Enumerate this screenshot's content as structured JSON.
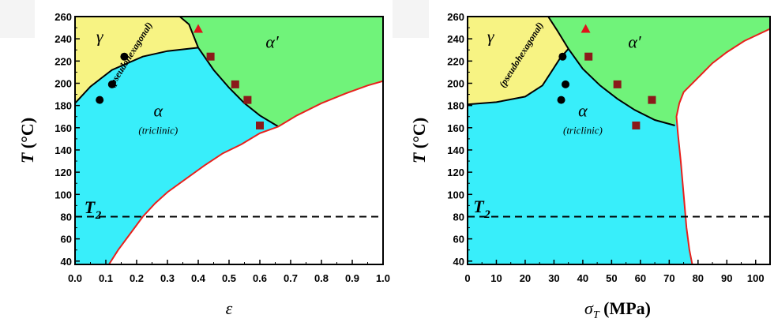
{
  "chart_data": [
    {
      "type": "area",
      "xlabel": "ε",
      "ylabel_symbol": "T",
      "ylabel_unit": " (°C)",
      "xlim": [
        0.0,
        1.0
      ],
      "ylim": [
        37,
        260
      ],
      "xticks": [
        0.0,
        0.1,
        0.2,
        0.3,
        0.4,
        0.5,
        0.6,
        0.7,
        0.8,
        0.9,
        1.0
      ],
      "xtick_labels": [
        "0.0",
        "0.1",
        "0.2",
        "0.3",
        "0.4",
        "0.5",
        "0.6",
        "0.7",
        "0.8",
        "0.9",
        "1.0"
      ],
      "yticks": [
        40,
        60,
        80,
        100,
        120,
        140,
        160,
        180,
        200,
        220,
        240,
        260
      ],
      "ytick_labels": [
        "40",
        "60",
        "80",
        "100",
        "120",
        "140",
        "160",
        "180",
        "200",
        "220",
        "240",
        "260"
      ],
      "colors": {
        "gamma": "#f7f383",
        "alpha": "#38eefa",
        "alpha_prime": "#70f37a",
        "boundary": "#000000",
        "limit": "#e8201c",
        "circle": "#000000",
        "square": "#8b1a1a",
        "triangle": "#e0121a"
      },
      "phases": [
        {
          "symbol": "γ",
          "name": "(pseudohexagonal)",
          "pos": [
            0.08,
            237
          ]
        },
        {
          "symbol": "α",
          "name": "(triclinic)",
          "pos": [
            0.27,
            170
          ]
        },
        {
          "symbol": "α′",
          "name": "",
          "pos": [
            0.64,
            232
          ]
        }
      ],
      "t2": {
        "symbol": "T",
        "sub": "2",
        "value": 80,
        "label_pos": [
          0.03,
          83
        ]
      },
      "gamma_alpha_boundary": [
        [
          0.0,
          182
        ],
        [
          0.05,
          197
        ],
        [
          0.12,
          212
        ],
        [
          0.22,
          224
        ],
        [
          0.3,
          229
        ],
        [
          0.4,
          232
        ]
      ],
      "alpha_alphaprime_boundary": [
        [
          0.34,
          260
        ],
        [
          0.37,
          253
        ],
        [
          0.4,
          232
        ],
        [
          0.45,
          212
        ],
        [
          0.5,
          196
        ],
        [
          0.55,
          182
        ],
        [
          0.6,
          171
        ],
        [
          0.66,
          161
        ]
      ],
      "limit_curve": [
        [
          0.11,
          37
        ],
        [
          0.14,
          50
        ],
        [
          0.18,
          65
        ],
        [
          0.22,
          80
        ],
        [
          0.26,
          92
        ],
        [
          0.3,
          102
        ],
        [
          0.36,
          114
        ],
        [
          0.42,
          126
        ],
        [
          0.48,
          137
        ],
        [
          0.54,
          145
        ],
        [
          0.6,
          155
        ],
        [
          0.66,
          161
        ],
        [
          0.72,
          171
        ],
        [
          0.8,
          182
        ],
        [
          0.88,
          191
        ],
        [
          0.95,
          198
        ],
        [
          1.0,
          202
        ]
      ],
      "circles": [
        [
          0.08,
          185
        ],
        [
          0.12,
          199
        ],
        [
          0.16,
          224
        ]
      ],
      "squares": [
        [
          0.44,
          224
        ],
        [
          0.52,
          199
        ],
        [
          0.56,
          185
        ],
        [
          0.6,
          162
        ]
      ],
      "triangles": [
        [
          0.4,
          249
        ]
      ]
    },
    {
      "type": "area",
      "xlabel_symbol": "σ",
      "xlabel_sub": "T",
      "xlabel_unit": " (MPa)",
      "ylabel_symbol": "T",
      "ylabel_unit": " (°C)",
      "xlim": [
        0,
        105
      ],
      "ylim": [
        37,
        260
      ],
      "xticks": [
        0,
        10,
        20,
        30,
        40,
        50,
        60,
        70,
        80,
        90,
        100
      ],
      "xtick_labels": [
        "0",
        "10",
        "20",
        "30",
        "40",
        "50",
        "60",
        "70",
        "80",
        "90",
        "100"
      ],
      "yticks": [
        40,
        60,
        80,
        100,
        120,
        140,
        160,
        180,
        200,
        220,
        240,
        260
      ],
      "ytick_labels": [
        "40",
        "60",
        "80",
        "100",
        "120",
        "140",
        "160",
        "180",
        "200",
        "220",
        "240",
        "260"
      ],
      "colors": {
        "gamma": "#f7f383",
        "alpha": "#38eefa",
        "alpha_prime": "#70f37a",
        "boundary": "#000000",
        "limit": "#e8201c",
        "circle": "#000000",
        "square": "#8b1a1a",
        "triangle": "#e0121a"
      },
      "phases": [
        {
          "symbol": "γ",
          "name": "(pseudohexagonal)",
          "pos": [
            8,
            237
          ]
        },
        {
          "symbol": "α",
          "name": "(triclinic)",
          "pos": [
            40,
            170
          ]
        },
        {
          "symbol": "α′",
          "name": "",
          "pos": [
            58,
            232
          ]
        }
      ],
      "t2": {
        "symbol": "T",
        "sub": "2",
        "value": 80,
        "label_pos": [
          2,
          84
        ]
      },
      "gamma_alpha_boundary": [
        [
          0,
          181
        ],
        [
          10,
          183
        ],
        [
          20,
          188
        ],
        [
          26,
          198
        ],
        [
          29,
          210
        ],
        [
          32,
          222
        ],
        [
          35,
          231
        ]
      ],
      "alpha_alphaprime_boundary": [
        [
          28,
          260
        ],
        [
          31,
          248
        ],
        [
          35,
          231
        ],
        [
          40,
          213
        ],
        [
          46,
          198
        ],
        [
          52,
          186
        ],
        [
          58,
          176
        ],
        [
          65,
          167
        ],
        [
          72,
          162
        ]
      ],
      "limit_curve": [
        [
          78,
          37
        ],
        [
          77,
          50
        ],
        [
          76,
          70
        ],
        [
          75,
          100
        ],
        [
          74,
          130
        ],
        [
          73,
          155
        ],
        [
          72.5,
          170
        ],
        [
          73.5,
          182
        ],
        [
          75,
          192
        ],
        [
          80,
          205
        ],
        [
          85,
          218
        ],
        [
          90,
          228
        ],
        [
          96,
          238
        ],
        [
          105,
          249
        ]
      ],
      "circles": [
        [
          32.5,
          185
        ],
        [
          34,
          199
        ],
        [
          33,
          224
        ]
      ],
      "squares": [
        [
          42,
          224
        ],
        [
          52,
          199
        ],
        [
          58.5,
          162
        ],
        [
          64,
          185
        ]
      ],
      "triangles": [
        [
          41,
          249
        ]
      ]
    }
  ]
}
